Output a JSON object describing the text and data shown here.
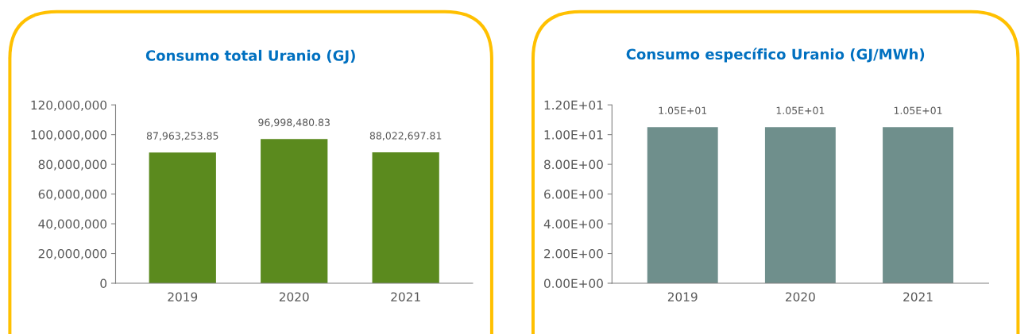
{
  "chart_data": [
    {
      "type": "bar",
      "title": "Consumo total Uranio (GJ)",
      "categories": [
        "2019",
        "2020",
        "2021"
      ],
      "series": [
        {
          "color": "#5b8a1e",
          "values": [
            87963253.85,
            96998480.83,
            88022697.81
          ],
          "value_labels": [
            "87,963,253.85",
            "96,998,480.83",
            "88,022,697.81"
          ]
        }
      ],
      "ylim": [
        0,
        120000000
      ],
      "yticks": [
        0,
        {
          "value": 20000000,
          "label": "20,000,000"
        },
        {
          "value": 40000000,
          "label": "40,000,000"
        },
        {
          "value": 60000000,
          "label": "60,000,000"
        },
        {
          "value": 80000000,
          "label": "80,000,000"
        },
        {
          "value": 100000000,
          "label": "100,000,000"
        },
        {
          "value": 120000000,
          "label": "120,000,000"
        }
      ],
      "grid": false,
      "legend": false
    },
    {
      "type": "bar",
      "title": "Consumo específico Uranio (GJ/MWh)",
      "categories": [
        "2019",
        "2020",
        "2021"
      ],
      "series": [
        {
          "color": "#6f8f8c",
          "values": [
            10.5,
            10.5,
            10.5
          ],
          "value_labels": [
            "1.05E+01",
            "1.05E+01",
            "1.05E+01"
          ]
        }
      ],
      "ylim": [
        0,
        12
      ],
      "yticks": [
        {
          "value": 0,
          "label": "0.00E+00"
        },
        {
          "value": 2,
          "label": "2.00E+00"
        },
        {
          "value": 4,
          "label": "4.00E+00"
        },
        {
          "value": 6,
          "label": "6.00E+00"
        },
        {
          "value": 8,
          "label": "8.00E+00"
        },
        {
          "value": 10,
          "label": "1.00E+01"
        },
        {
          "value": 12,
          "label": "1.20E+01"
        }
      ],
      "grid": false,
      "legend": false
    }
  ]
}
